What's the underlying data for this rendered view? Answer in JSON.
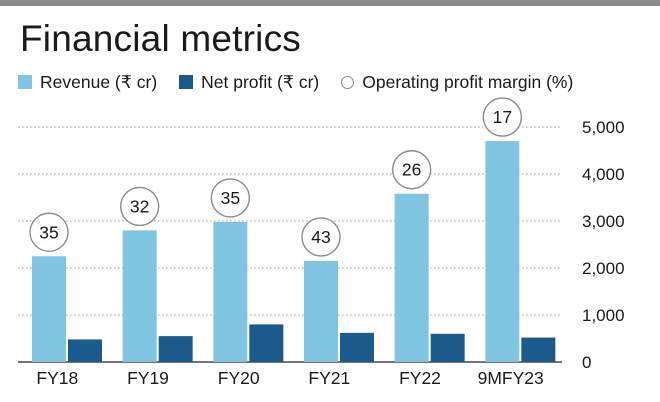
{
  "title": "Financial metrics",
  "legend": [
    {
      "label": "Revenue (₹ cr)",
      "color": "#7fc4e0",
      "shape": "square"
    },
    {
      "label": "Net profit (₹ cr)",
      "color": "#1d5a8c",
      "shape": "square"
    },
    {
      "label": "Operating profit margin (%)",
      "color": "#ffffff",
      "shape": "circle"
    }
  ],
  "chart_data": {
    "type": "bar",
    "title": "Financial metrics",
    "categories": [
      "FY18",
      "FY19",
      "FY20",
      "FY21",
      "FY22",
      "9MFY23"
    ],
    "series": [
      {
        "name": "Revenue (₹ cr)",
        "color": "#7fc4e0",
        "values": [
          2250,
          2800,
          2980,
          2150,
          3580,
          4700
        ]
      },
      {
        "name": "Net profit (₹ cr)",
        "color": "#1d5a8c",
        "values": [
          480,
          550,
          800,
          620,
          600,
          520
        ]
      }
    ],
    "annotations": {
      "name": "Operating profit margin (%)",
      "values": [
        35,
        32,
        35,
        43,
        26,
        17
      ]
    },
    "y_axis": {
      "position": "right",
      "ylim": [
        0,
        5000
      ],
      "ticks": [
        0,
        1000,
        2000,
        3000,
        4000,
        5000
      ],
      "tick_labels": [
        "0",
        "1,000",
        "2,000",
        "3,000",
        "4,000",
        "5,000"
      ]
    },
    "grid": "dotted-horizontal",
    "xlabel": "",
    "ylabel": ""
  }
}
